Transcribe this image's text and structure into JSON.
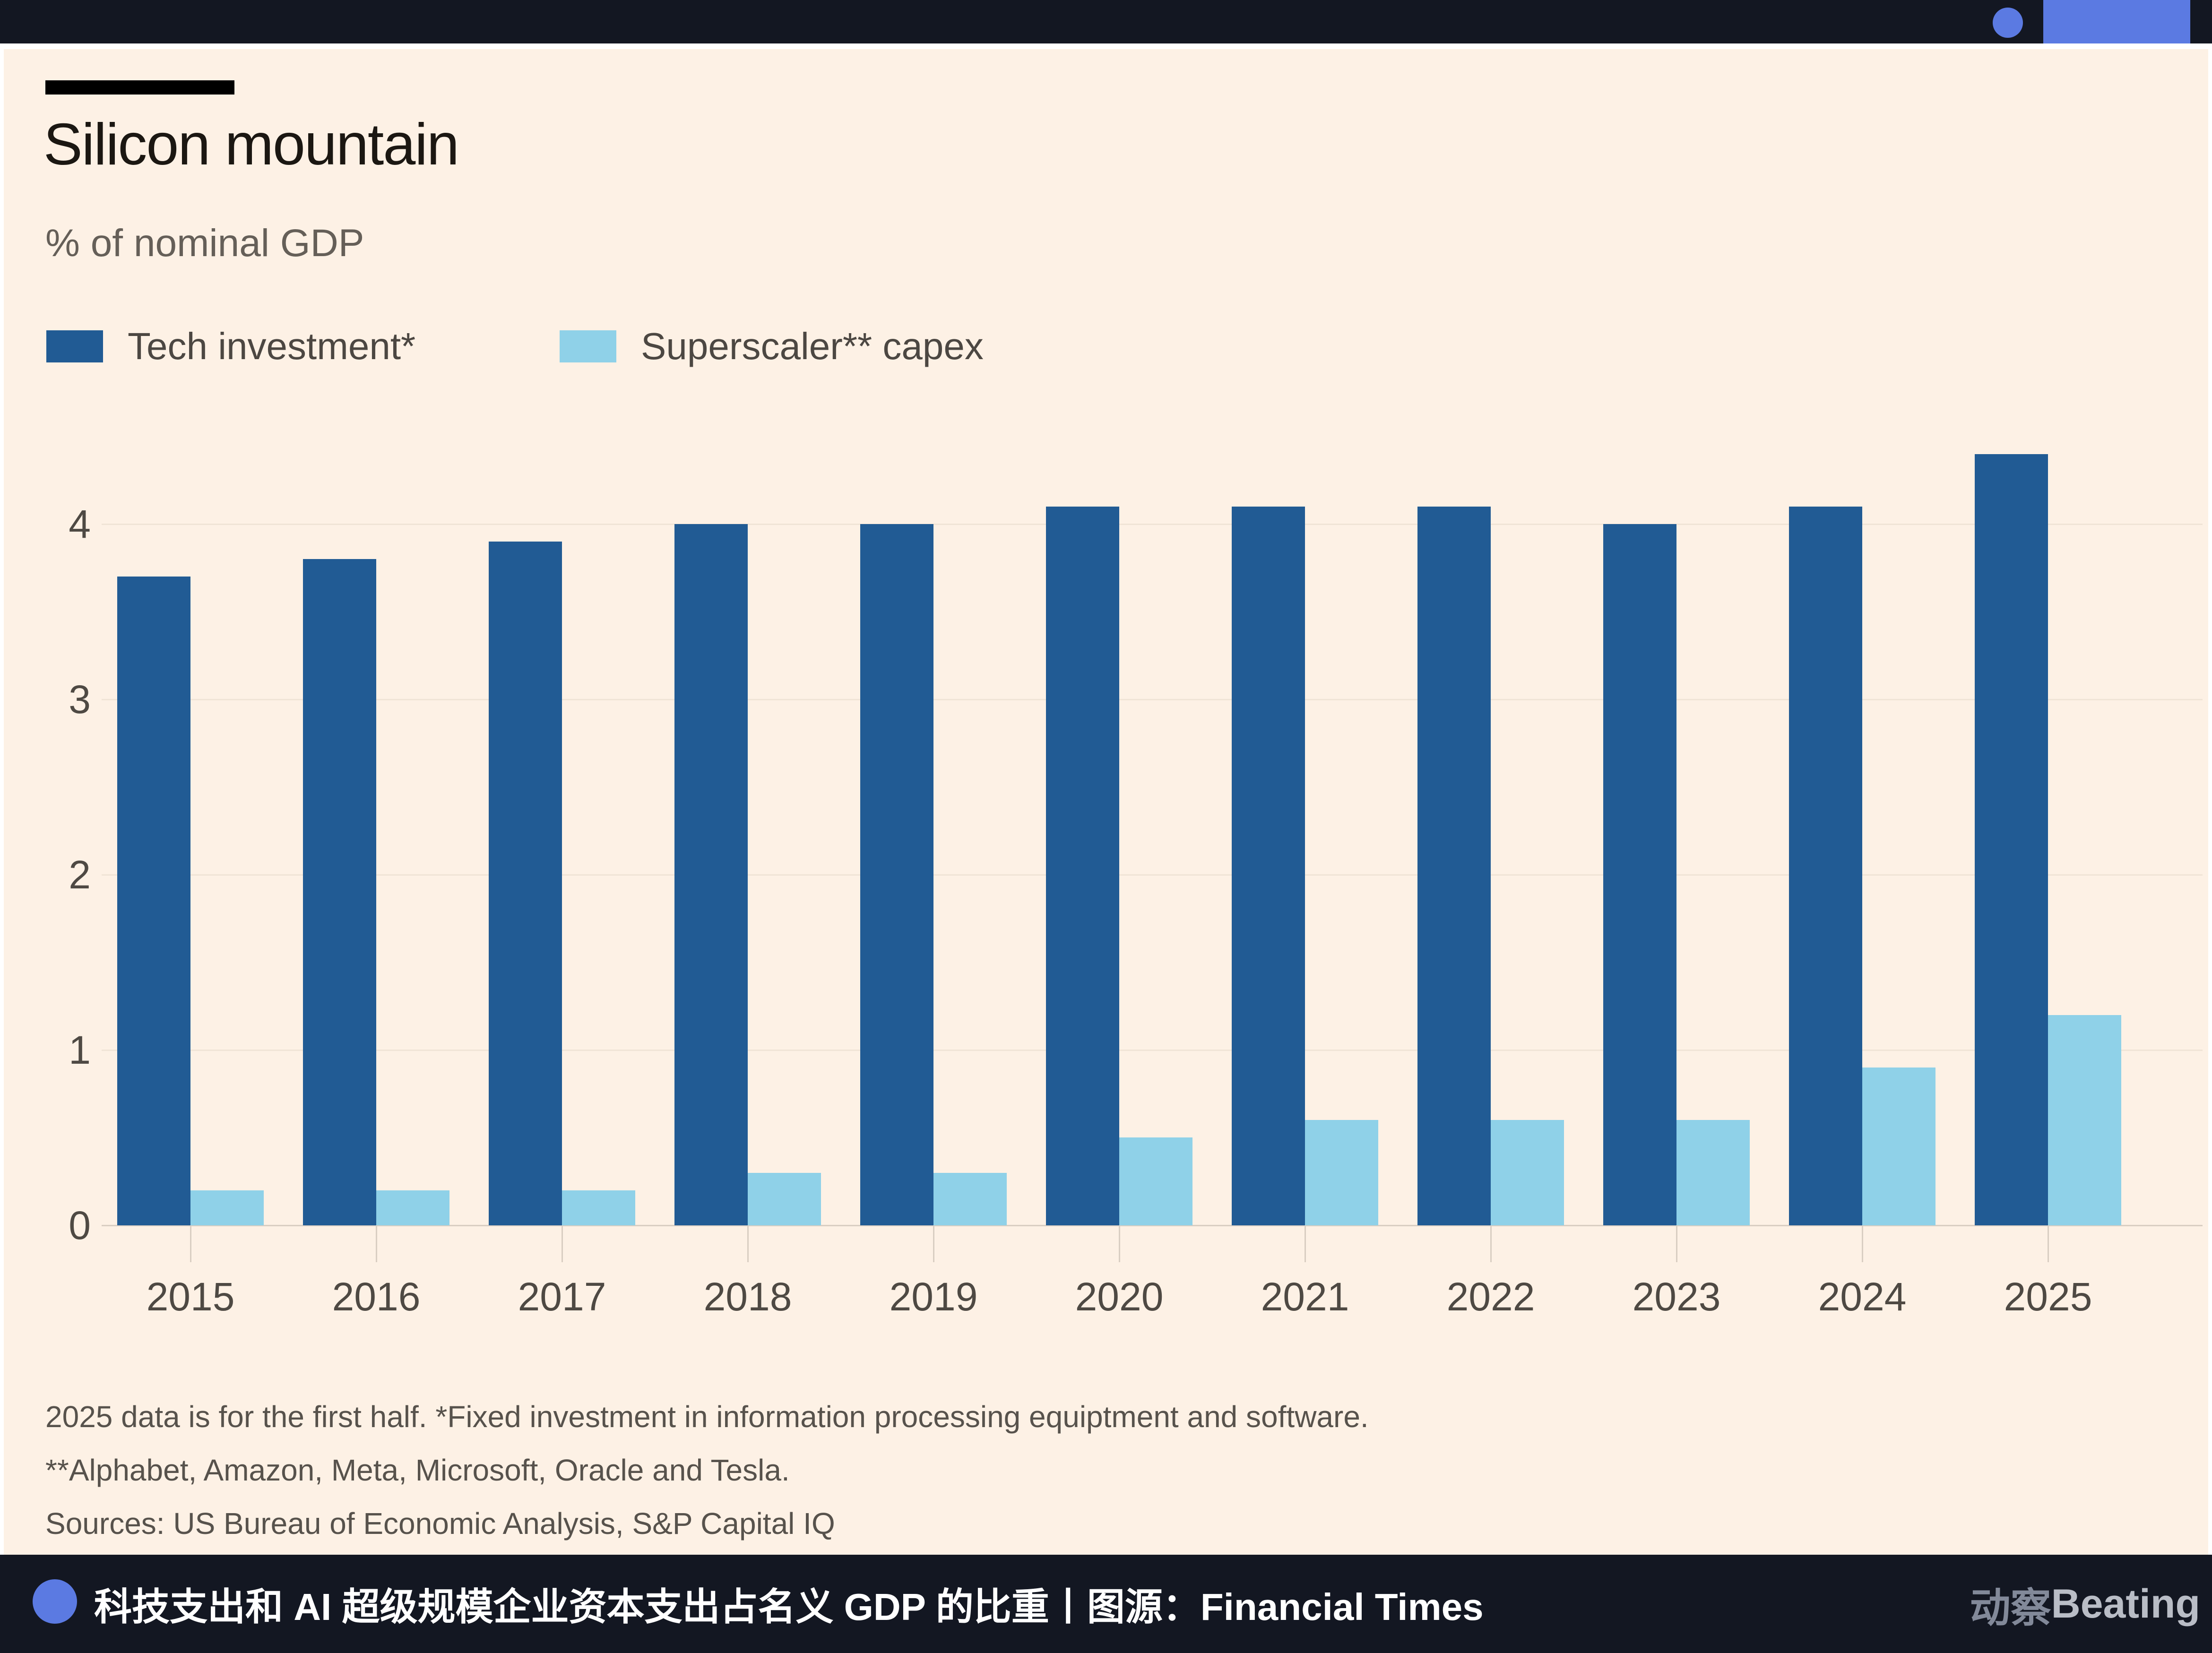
{
  "top_bar": {
    "bar_color": "#131722",
    "accent_color": "#5b7ae2"
  },
  "chart_data": {
    "type": "bar",
    "title": "Silicon mountain",
    "subtitle": "% of nominal GDP",
    "categories": [
      "2015",
      "2016",
      "2017",
      "2018",
      "2019",
      "2020",
      "2021",
      "2022",
      "2023",
      "2024",
      "2025"
    ],
    "series": [
      {
        "name": "Tech investment*",
        "color": "#215b94",
        "values": [
          3.7,
          3.8,
          3.9,
          4.0,
          4.0,
          4.1,
          4.1,
          4.1,
          4.0,
          4.1,
          4.4
        ]
      },
      {
        "name": "Superscaler** capex",
        "color": "#8fd1e8",
        "values": [
          0.2,
          0.2,
          0.2,
          0.3,
          0.3,
          0.5,
          0.6,
          0.6,
          0.6,
          0.9,
          1.2
        ]
      }
    ],
    "ylim": [
      0,
      4.5
    ],
    "yticks": [
      0,
      1,
      2,
      3,
      4
    ],
    "grid": true,
    "legend_position": "top-left",
    "background": "#fdf1e5"
  },
  "footnotes": {
    "lines": [
      "2025 data is for the first half. *Fixed investment in information processing equiptment and software.",
      "**Alphabet, Amazon, Meta, Microsoft, Oracle and Tesla.",
      "Sources: US Bureau of Economic Analysis, S&P Capital IQ"
    ]
  },
  "footer": {
    "caption": "科技支出和 AI 超级规模企业资本支出占名义 GDP 的比重丨图源：Financial Times",
    "logo_cn": "动察",
    "logo_en": "Beating"
  }
}
